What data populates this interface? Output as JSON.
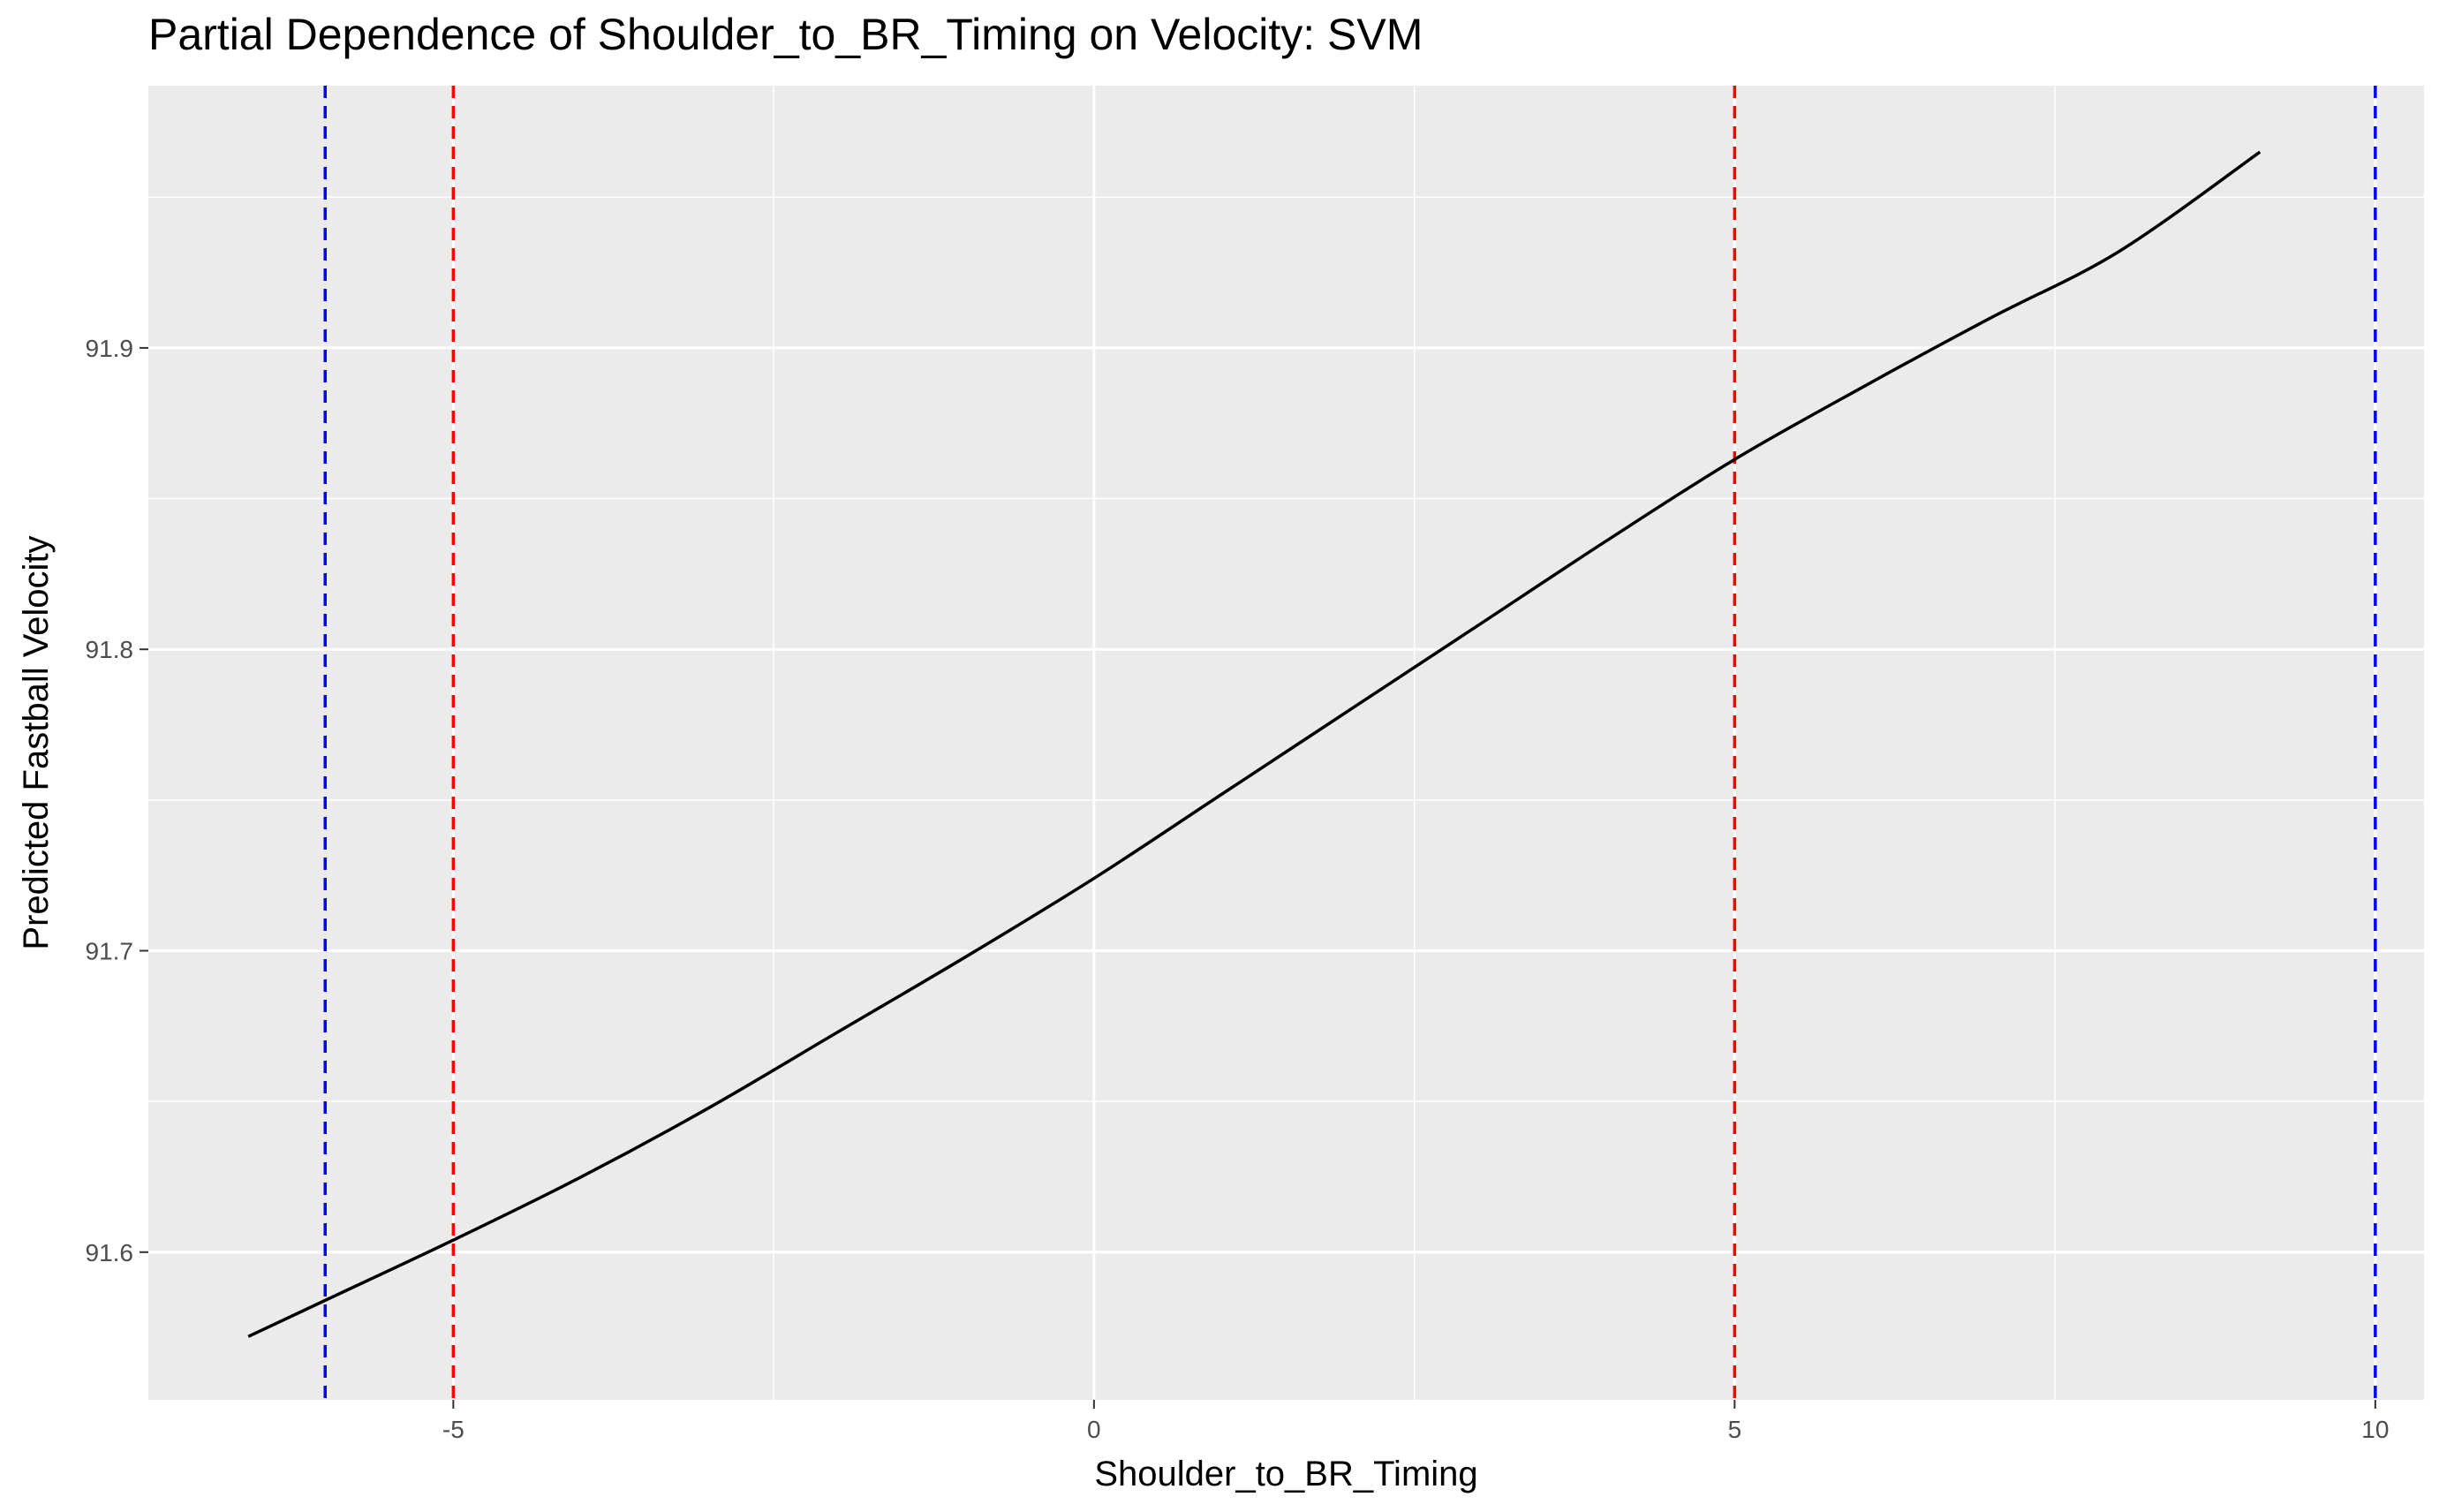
{
  "chart_data": {
    "type": "line",
    "title": "Partial Dependence of Shoulder_to_BR_Timing on Velocity: SVM",
    "xlabel": "Shoulder_to_BR_Timing",
    "ylabel": "Predicted Fastball Velocity",
    "xlim": [
      -7.38,
      10.38
    ],
    "ylim": [
      91.551,
      91.987
    ],
    "x_ticks": [
      -5,
      0,
      5,
      10
    ],
    "x_tick_labels": [
      "-5",
      "0",
      "5",
      "10"
    ],
    "y_ticks": [
      91.6,
      91.7,
      91.8,
      91.9
    ],
    "y_tick_labels": [
      "91.6",
      "91.7",
      "91.8",
      "91.9"
    ],
    "grid": true,
    "series": [
      {
        "color": "#000000",
        "x": [
          -6.6,
          -6,
          -5,
          -4,
          -3,
          -2,
          -1,
          0,
          1,
          2,
          3,
          4,
          5,
          6,
          7,
          8,
          9.1
        ],
        "y": [
          91.572,
          91.584,
          91.604,
          91.625,
          91.648,
          91.673,
          91.698,
          91.724,
          91.752,
          91.78,
          91.808,
          91.836,
          91.863,
          91.887,
          91.91,
          91.932,
          91.965
        ]
      }
    ],
    "reference_lines": [
      {
        "x": -6,
        "color": "#0000ff",
        "style": "dashed"
      },
      {
        "x": -5,
        "color": "#ff0000",
        "style": "dashed"
      },
      {
        "x": 5,
        "color": "#ff0000",
        "style": "dashed"
      },
      {
        "x": 10,
        "color": "#0000ff",
        "style": "dashed"
      }
    ],
    "colors": {
      "panel": "#ebebeb",
      "grid": "#ffffff",
      "tick_text": "#4d4d4d",
      "tick_mark": "#333333"
    }
  }
}
